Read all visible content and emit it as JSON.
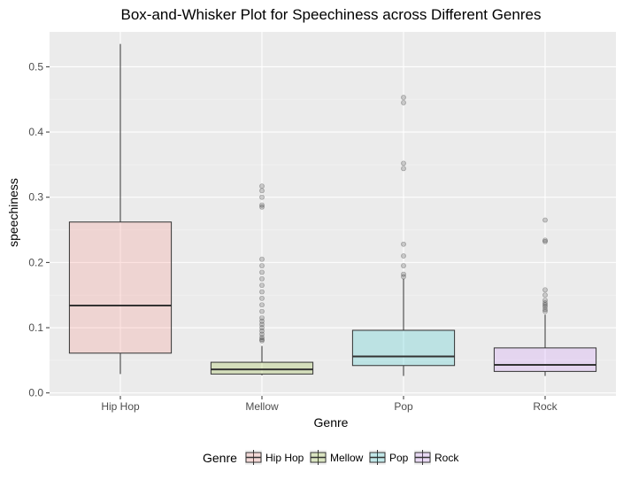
{
  "chart_data": {
    "type": "box",
    "title": "Box-and-Whisker Plot for Speechiness across Different Genres",
    "xlabel": "Genre",
    "ylabel": "speechiness",
    "ylim": [
      0.0,
      0.55
    ],
    "y_ticks": [
      "0.0",
      "0.1",
      "0.2",
      "0.3",
      "0.4",
      "0.5"
    ],
    "y_tick_values": [
      0.0,
      0.1,
      0.2,
      0.3,
      0.4,
      0.5
    ],
    "grid": true,
    "legend_placement": "bottom",
    "legend_title": "Genre",
    "categories": [
      "Hip Hop",
      "Mellow",
      "Pop",
      "Rock"
    ],
    "boxes": [
      {
        "name": "Hip Hop",
        "min": 0.029,
        "q1": 0.061,
        "median": 0.134,
        "q3": 0.262,
        "max": 0.535,
        "outliers": [],
        "fill": "#f8766d"
      },
      {
        "name": "Mellow",
        "min": 0.027,
        "q1": 0.029,
        "median": 0.036,
        "q3": 0.047,
        "max": 0.072,
        "outliers": [
          0.08,
          0.082,
          0.085,
          0.09,
          0.095,
          0.1,
          0.105,
          0.11,
          0.115,
          0.125,
          0.135,
          0.145,
          0.155,
          0.165,
          0.175,
          0.185,
          0.195,
          0.205,
          0.285,
          0.288,
          0.3,
          0.31,
          0.317
        ],
        "fill": "#7cae00"
      },
      {
        "name": "Pop",
        "min": 0.026,
        "q1": 0.042,
        "median": 0.056,
        "q3": 0.096,
        "max": 0.175,
        "outliers": [
          0.178,
          0.182,
          0.195,
          0.21,
          0.228,
          0.344,
          0.352,
          0.445,
          0.453
        ],
        "fill": "#00bfc4"
      },
      {
        "name": "Rock",
        "min": 0.026,
        "q1": 0.033,
        "median": 0.043,
        "q3": 0.069,
        "max": 0.12,
        "outliers": [
          0.125,
          0.128,
          0.132,
          0.135,
          0.138,
          0.142,
          0.15,
          0.158,
          0.232,
          0.234,
          0.265
        ],
        "fill": "#c77cff"
      }
    ]
  }
}
